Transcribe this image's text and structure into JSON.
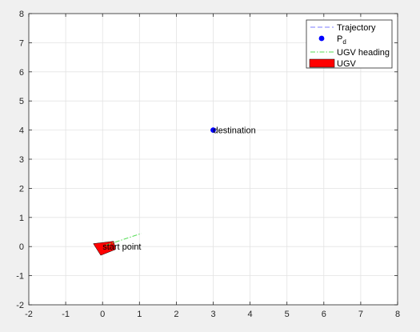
{
  "chart_data": {
    "type": "scatter",
    "xlim": [
      -2,
      8
    ],
    "ylim": [
      -2,
      8
    ],
    "xticks": [
      -2,
      -1,
      0,
      1,
      2,
      3,
      4,
      5,
      6,
      7,
      8
    ],
    "yticks": [
      -2,
      -1,
      0,
      1,
      2,
      3,
      4,
      5,
      6,
      7,
      8
    ],
    "grid": true,
    "legend": {
      "placement": "top-right",
      "entries": [
        {
          "label": "Trajectory",
          "style": "dashed-line",
          "color": "#7b7bff"
        },
        {
          "label": "P",
          "subscript": "d",
          "style": "marker",
          "color": "#0000ff"
        },
        {
          "label": "UGV heading",
          "style": "dashdot-line",
          "color": "#55dd55"
        },
        {
          "label": "UGV",
          "style": "patch",
          "color": "#ff0000"
        }
      ]
    },
    "destination": {
      "x": 3,
      "y": 4,
      "label": "destination"
    },
    "start": {
      "label": "start point",
      "x": 0,
      "y": 0
    },
    "ugv_polygon": [
      [
        -0.25,
        0.1
      ],
      [
        0.3,
        0.18
      ],
      [
        0.35,
        -0.1
      ],
      [
        -0.05,
        -0.3
      ]
    ],
    "heading_line": {
      "x": [
        0.1,
        1.05
      ],
      "y": [
        0.05,
        0.45
      ]
    },
    "trajectory": []
  },
  "colors": {
    "axes_bg": "#ffffff",
    "grid": "#e3e3e3",
    "axis": "#262626",
    "figure_bg": "#f0f0f0"
  }
}
